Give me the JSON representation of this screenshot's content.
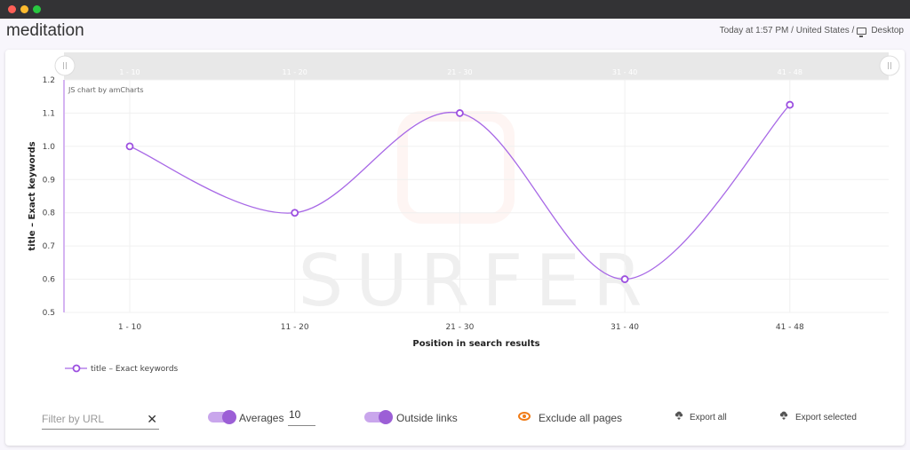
{
  "window": {
    "controls": [
      "close",
      "minimize",
      "maximize"
    ]
  },
  "header": {
    "title": "meditation",
    "meta_prefix": "Today at 1:57 PM / United States /",
    "device": "Desktop"
  },
  "chart": {
    "credit": "JS chart by amCharts",
    "watermark": "SURFER",
    "scrollbar_labels": [
      "1 - 10",
      "11 - 20",
      "21 - 30",
      "31 - 40",
      "41 - 48"
    ],
    "legend_label": "title – Exact keywords"
  },
  "chart_data": {
    "type": "line",
    "title": "",
    "xlabel": "Position in search results",
    "ylabel": "title – Exact keywords",
    "categories": [
      "1 - 10",
      "11 - 20",
      "21 - 30",
      "31 - 40",
      "41 - 48"
    ],
    "series": [
      {
        "name": "title – Exact keywords",
        "values": [
          1.0,
          0.8,
          1.1,
          0.6,
          1.125
        ],
        "color": "#a869e6"
      }
    ],
    "yticks": [
      "0.5",
      "0.6",
      "0.7",
      "0.8",
      "0.9",
      "1.0",
      "1.1",
      "1.2"
    ],
    "ylim": [
      0.5,
      1.2
    ],
    "grid": true,
    "smoothed": true,
    "legend_position": "bottom-left"
  },
  "controls": {
    "filter_placeholder": "Filter by URL",
    "filter_value": "",
    "clear_icon": "✕",
    "averages_label": "Averages",
    "averages_value": "10",
    "averages_toggle": true,
    "outside_links_label": "Outside links",
    "outside_links_toggle": true,
    "exclude_label": "Exclude all pages",
    "export_all_label": "Export all",
    "export_selected_label": "Export selected"
  },
  "colors": {
    "accent": "#a869e6",
    "toggle_knob": "#9c5fd6",
    "toggle_track": "#c9a6ec",
    "eye": "#f07b16"
  }
}
